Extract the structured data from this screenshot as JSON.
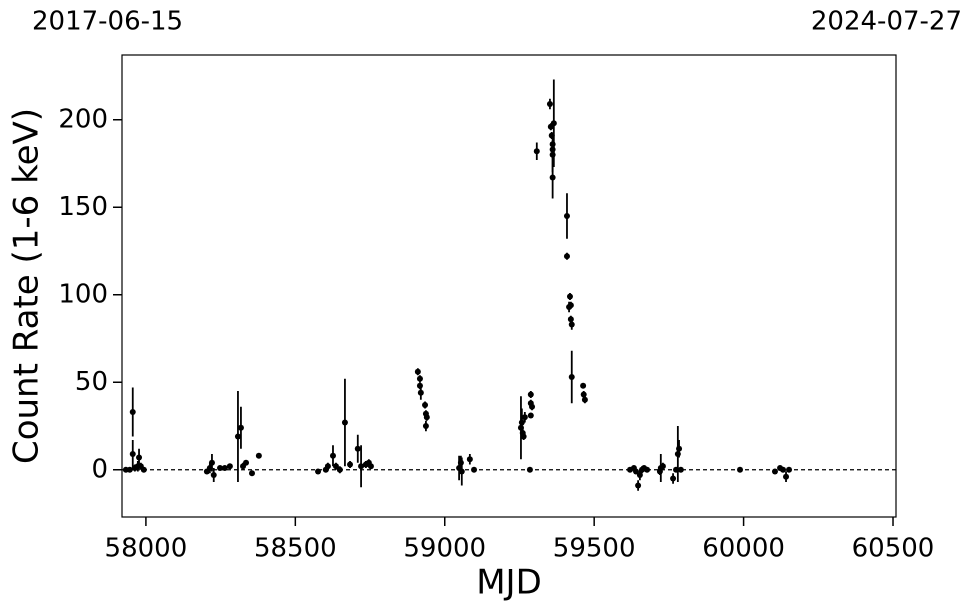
{
  "chart_data": {
    "type": "errorbar",
    "start_date": "2017-06-15",
    "end_date": "2024-07-27",
    "xlabel": "MJD",
    "ylabel": "Count Rate (1-6 keV)",
    "x": [
      57933,
      57946,
      57956,
      57956,
      57963,
      57973,
      57977,
      57983,
      57993,
      58204,
      58214,
      58221,
      58227,
      58248,
      58264,
      58281,
      58308,
      58318,
      58325,
      58335,
      58355,
      58378,
      58576,
      58602,
      58609,
      58626,
      58636,
      58649,
      58666,
      58683,
      58709,
      58720,
      58736,
      58746,
      58753,
      58910,
      58917,
      58917,
      58920,
      58934,
      58937,
      58940,
      58937,
      59048,
      59054,
      59057,
      59084,
      59098,
      59255,
      59258,
      59261,
      59264,
      59268,
      59285,
      59288,
      59288,
      59292,
      59288,
      59308,
      59352,
      59355,
      59358,
      59361,
      59361,
      59361,
      59361,
      59365,
      59409,
      59409,
      59419,
      59422,
      59416,
      59422,
      59425,
      59425,
      59463,
      59465,
      59469,
      59620,
      59633,
      59640,
      59647,
      59653,
      59660,
      59667,
      59677,
      59720,
      59723,
      59730,
      59764,
      59774,
      59780,
      59784,
      59790,
      59988,
      60105,
      60122,
      60132,
      60142,
      60152
    ],
    "values": [
      0,
      0,
      33,
      9,
      1,
      2,
      7,
      2,
      0,
      -1,
      1,
      4,
      -3,
      1,
      1,
      2,
      19,
      24,
      2,
      4,
      -2,
      8,
      -1,
      0,
      2,
      8,
      2,
      0,
      27,
      3,
      12,
      2,
      3,
      4,
      2,
      56,
      52,
      48,
      44,
      37,
      32,
      30,
      25,
      1,
      4,
      -1,
      6,
      0,
      24,
      27,
      21,
      19,
      30,
      0,
      43,
      38,
      36,
      31,
      182,
      209,
      196,
      191,
      186,
      183,
      180,
      167,
      198,
      145,
      122,
      99,
      94,
      93,
      86,
      83,
      53,
      48,
      43,
      40,
      0,
      1,
      -1,
      -9,
      -3,
      0,
      1,
      0,
      -1,
      1,
      2,
      -5,
      0,
      9,
      12,
      0,
      0,
      -1,
      1,
      0,
      -4,
      0
    ],
    "errors": [
      1,
      1,
      14,
      8,
      2,
      3,
      5,
      2,
      1,
      1,
      3,
      5,
      4,
      1,
      1,
      1,
      26,
      12,
      2,
      1,
      1,
      1,
      1,
      1,
      2,
      6,
      2,
      2,
      25,
      2,
      8,
      12,
      2,
      2,
      1,
      2,
      2,
      2,
      4,
      2,
      2,
      2,
      3,
      7,
      4,
      8,
      3,
      1,
      18,
      8,
      3,
      2,
      3,
      1,
      2,
      2,
      2,
      1,
      5,
      3,
      2,
      2,
      2,
      2,
      10,
      12,
      25,
      13,
      2,
      2,
      2,
      3,
      2,
      3,
      15,
      1,
      2,
      2,
      1,
      1,
      1,
      3,
      3,
      2,
      1,
      1,
      2,
      8,
      2,
      3,
      1,
      16,
      5,
      1,
      1,
      1,
      1,
      1,
      3,
      1
    ],
    "color": "#000000",
    "hline": 0,
    "xlim": [
      57920,
      60510
    ],
    "xticks": [
      58000,
      58500,
      59000,
      59500,
      60000,
      60500
    ],
    "ylim": [
      -27,
      237
    ],
    "yticks": [
      0,
      50,
      100,
      150,
      200
    ]
  }
}
